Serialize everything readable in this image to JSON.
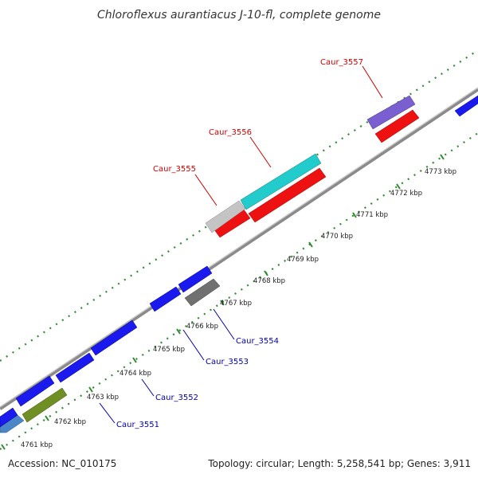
{
  "title": "Chloroflexus aurantiacus J-10-fl, complete genome",
  "footer": {
    "accession": "Accession: NC_010175",
    "stats": "Topology: circular; Length: 5,258,541 bp; Genes: 3,911"
  },
  "colors": {
    "backbone": "#8c8c8c",
    "ticks": "#2e8b2e",
    "highlight_label": "#cc0000",
    "normal_label": "#0000aa"
  },
  "kbp_labels": [
    "4761 kbp",
    "4762 kbp",
    "4763 kbp",
    "4764 kbp",
    "4765 kbp",
    "4766 kbp",
    "4767 kbp",
    "4768 kbp",
    "4769 kbp",
    "4770 kbp",
    "4771 kbp",
    "4772 kbp",
    "4773 kbp"
  ],
  "genes": [
    {
      "name": "Caur_3551",
      "highlight": false
    },
    {
      "name": "Caur_3552",
      "highlight": false
    },
    {
      "name": "Caur_3553",
      "highlight": false
    },
    {
      "name": "Caur_3554",
      "highlight": false
    },
    {
      "name": "Caur_3555",
      "highlight": true
    },
    {
      "name": "Caur_3556",
      "highlight": true
    },
    {
      "name": "Caur_3557",
      "highlight": true
    }
  ]
}
